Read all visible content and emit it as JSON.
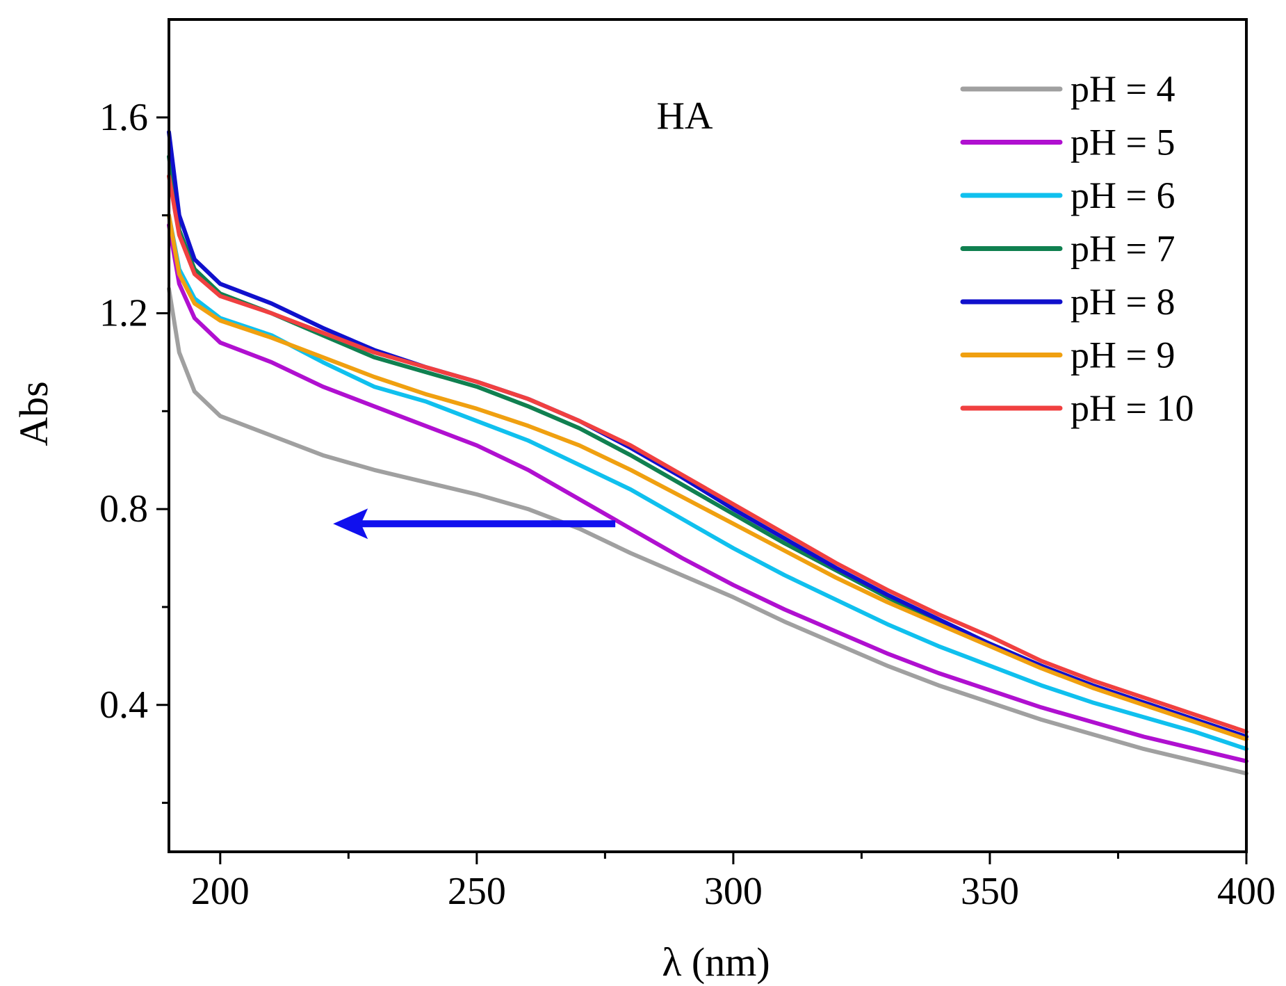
{
  "chart_data": {
    "type": "line",
    "title": "",
    "annotation": "HA",
    "xlabel": "λ (nm)",
    "ylabel": "Abs",
    "xlim": [
      190,
      400
    ],
    "ylim": [
      0.1,
      1.8
    ],
    "x_ticks": [
      200,
      250,
      300,
      350,
      400
    ],
    "x_tick_labels": [
      "200",
      "250",
      "300",
      "350",
      "400"
    ],
    "x_minor_ticks": [
      225,
      275,
      325,
      375
    ],
    "y_ticks": [
      0.4,
      0.8,
      1.2,
      1.6
    ],
    "y_tick_labels": [
      "0.4",
      "0.8",
      "1.2",
      "1.6"
    ],
    "y_minor_ticks": [
      0.2,
      0.6,
      1.0,
      1.4
    ],
    "grid": false,
    "legend_position": "top-right",
    "arrow": {
      "direction": "left",
      "color": "#1010ee",
      "from": [
        277,
        0.77
      ],
      "to": [
        222,
        0.77
      ]
    },
    "x": [
      190,
      192,
      195,
      200,
      210,
      220,
      230,
      240,
      250,
      260,
      270,
      280,
      290,
      300,
      310,
      320,
      330,
      340,
      350,
      360,
      370,
      380,
      390,
      400
    ],
    "series": [
      {
        "name": "pH = 4",
        "color": "#a0a0a0",
        "values": [
          1.25,
          1.12,
          1.04,
          0.99,
          0.95,
          0.91,
          0.88,
          0.855,
          0.83,
          0.8,
          0.76,
          0.71,
          0.665,
          0.62,
          0.57,
          0.525,
          0.48,
          0.44,
          0.405,
          0.37,
          0.34,
          0.31,
          0.285,
          0.26
        ]
      },
      {
        "name": "pH = 5",
        "color": "#b010d0",
        "values": [
          1.38,
          1.26,
          1.19,
          1.14,
          1.1,
          1.05,
          1.01,
          0.97,
          0.93,
          0.88,
          0.82,
          0.76,
          0.7,
          0.645,
          0.595,
          0.55,
          0.505,
          0.465,
          0.43,
          0.395,
          0.365,
          0.335,
          0.31,
          0.285
        ]
      },
      {
        "name": "pH = 6",
        "color": "#10c0ee",
        "values": [
          1.4,
          1.29,
          1.23,
          1.19,
          1.155,
          1.1,
          1.05,
          1.02,
          0.98,
          0.94,
          0.89,
          0.84,
          0.78,
          0.72,
          0.665,
          0.615,
          0.565,
          0.52,
          0.48,
          0.44,
          0.405,
          0.375,
          0.345,
          0.31
        ]
      },
      {
        "name": "pH = 7",
        "color": "#108050",
        "values": [
          1.52,
          1.37,
          1.29,
          1.24,
          1.2,
          1.155,
          1.11,
          1.08,
          1.05,
          1.01,
          0.965,
          0.91,
          0.85,
          0.79,
          0.73,
          0.675,
          0.62,
          0.57,
          0.525,
          0.48,
          0.44,
          0.405,
          0.37,
          0.335
        ]
      },
      {
        "name": "pH = 8",
        "color": "#1010cc",
        "values": [
          1.57,
          1.4,
          1.31,
          1.26,
          1.22,
          1.17,
          1.125,
          1.09,
          1.06,
          1.025,
          0.98,
          0.925,
          0.865,
          0.8,
          0.74,
          0.68,
          0.625,
          0.575,
          0.525,
          0.48,
          0.44,
          0.405,
          0.37,
          0.335
        ]
      },
      {
        "name": "pH = 9",
        "color": "#f0a010",
        "values": [
          1.4,
          1.28,
          1.22,
          1.185,
          1.15,
          1.11,
          1.07,
          1.035,
          1.005,
          0.97,
          0.93,
          0.88,
          0.825,
          0.77,
          0.715,
          0.66,
          0.61,
          0.565,
          0.52,
          0.475,
          0.435,
          0.4,
          0.365,
          0.33
        ]
      },
      {
        "name": "pH = 10",
        "color": "#f04040",
        "values": [
          1.48,
          1.36,
          1.28,
          1.235,
          1.2,
          1.16,
          1.12,
          1.09,
          1.06,
          1.025,
          0.98,
          0.93,
          0.87,
          0.81,
          0.75,
          0.69,
          0.635,
          0.585,
          0.54,
          0.49,
          0.45,
          0.415,
          0.38,
          0.345
        ]
      }
    ]
  }
}
